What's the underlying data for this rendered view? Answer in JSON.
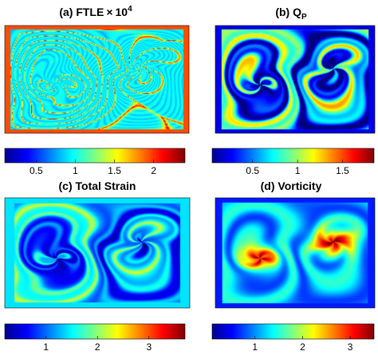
{
  "figure": {
    "panels": [
      {
        "id": "a",
        "title_main": "(a) FTLE",
        "title_times": "×",
        "title_base": "10",
        "title_exp": "4",
        "colorbar": {
          "min": 0.1,
          "max": 2.4,
          "ticks": [
            0.5,
            1,
            1.5,
            2
          ],
          "tick_labels": [
            "0.5",
            "1",
            "1.5",
            "2"
          ]
        },
        "field_style": "ridges"
      },
      {
        "id": "b",
        "title_main": "(b) Q",
        "title_sub": "P",
        "colorbar": {
          "min": 0.05,
          "max": 1.85,
          "ticks": [
            0.5,
            1,
            1.5
          ],
          "tick_labels": [
            "0.5",
            "1",
            "1.5"
          ]
        },
        "field_style": "cores-low"
      },
      {
        "id": "c",
        "title_main": "(c) Total Strain",
        "colorbar": {
          "min": 0.2,
          "max": 3.7,
          "ticks": [
            1,
            2,
            3
          ],
          "tick_labels": [
            "1",
            "2",
            "3"
          ]
        },
        "field_style": "smooth"
      },
      {
        "id": "d",
        "title_main": "(d) Vorticity",
        "colorbar": {
          "min": 0.1,
          "max": 3.5,
          "ticks": [
            1,
            2,
            3
          ],
          "tick_labels": [
            "1",
            "2",
            "3"
          ]
        },
        "field_style": "cores-high"
      }
    ],
    "colormap": "jet"
  }
}
